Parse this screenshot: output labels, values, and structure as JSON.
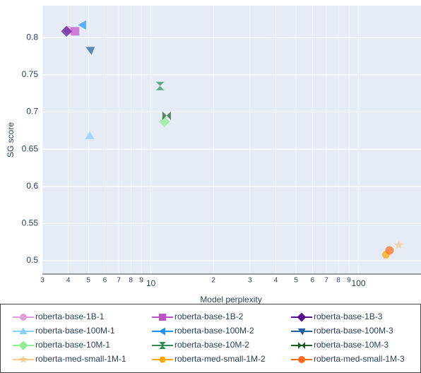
{
  "chart_data": {
    "type": "scatter",
    "xscale": "log",
    "x_label": "Model perplexity",
    "y_label": "SG score",
    "xlim": [
      3,
      200
    ],
    "ylim": [
      0.482,
      0.843
    ],
    "xticks": [
      3,
      4,
      5,
      6,
      7,
      8,
      9,
      10,
      {
        "value": 20,
        "label": "2"
      },
      {
        "value": 30,
        "label": "3"
      },
      {
        "value": 40,
        "label": "4"
      },
      {
        "value": 50,
        "label": "5"
      },
      {
        "value": 60,
        "label": "6"
      },
      {
        "value": 70,
        "label": "7"
      },
      {
        "value": 80,
        "label": "8"
      },
      {
        "value": 90,
        "label": "9"
      },
      100
    ],
    "yticks": [
      0.5,
      0.55,
      0.6,
      0.65,
      0.7,
      0.75,
      0.8
    ],
    "grid": true,
    "legend": "bottom",
    "series": [
      {
        "name": "roberta-base-1B-1",
        "color": "#dda0dd",
        "symbol": "circle",
        "x": [
          4.0
        ],
        "values": [
          0.81
        ]
      },
      {
        "name": "roberta-base-1B-2",
        "color": "#c050c8",
        "symbol": "square",
        "x": [
          4.31
        ],
        "values": [
          0.8085
        ]
      },
      {
        "name": "roberta-base-1B-3",
        "color": "#5b0f91",
        "symbol": "diamond",
        "x": [
          3.92
        ],
        "values": [
          0.8085
        ]
      },
      {
        "name": "roberta-base-100M-1",
        "color": "#87cefa",
        "symbol": "triangle-up",
        "x": [
          5.07
        ],
        "values": [
          0.668
        ]
      },
      {
        "name": "roberta-base-100M-2",
        "color": "#1e90ff",
        "symbol": "triangle-left",
        "x": [
          4.69
        ],
        "values": [
          0.817
        ]
      },
      {
        "name": "roberta-base-100M-3",
        "color": "#1f5f9f",
        "symbol": "triangle-down",
        "x": [
          5.1
        ],
        "values": [
          0.783
        ]
      },
      {
        "name": "roberta-base-10M-1",
        "color": "#90ee90",
        "symbol": "diamond",
        "x": [
          11.6
        ],
        "values": [
          0.687
        ]
      },
      {
        "name": "roberta-base-10M-2",
        "color": "#2e8b57",
        "symbol": "hourglass",
        "x": [
          11.07
        ],
        "values": [
          0.735
        ]
      },
      {
        "name": "roberta-base-10M-3",
        "color": "#1a5e20",
        "symbol": "bowtie",
        "x": [
          11.9
        ],
        "values": [
          0.695
        ]
      },
      {
        "name": "roberta-med-small-1M-1",
        "color": "#ffc98b",
        "symbol": "star",
        "x": [
          156
        ],
        "values": [
          0.521
        ]
      },
      {
        "name": "roberta-med-small-1M-2",
        "color": "#ffa500",
        "symbol": "hexagon",
        "x": [
          135.5
        ],
        "values": [
          0.508
        ]
      },
      {
        "name": "roberta-med-small-1M-3",
        "color": "#ff6a1a",
        "symbol": "circle",
        "x": [
          141
        ],
        "values": [
          0.514
        ]
      }
    ]
  }
}
